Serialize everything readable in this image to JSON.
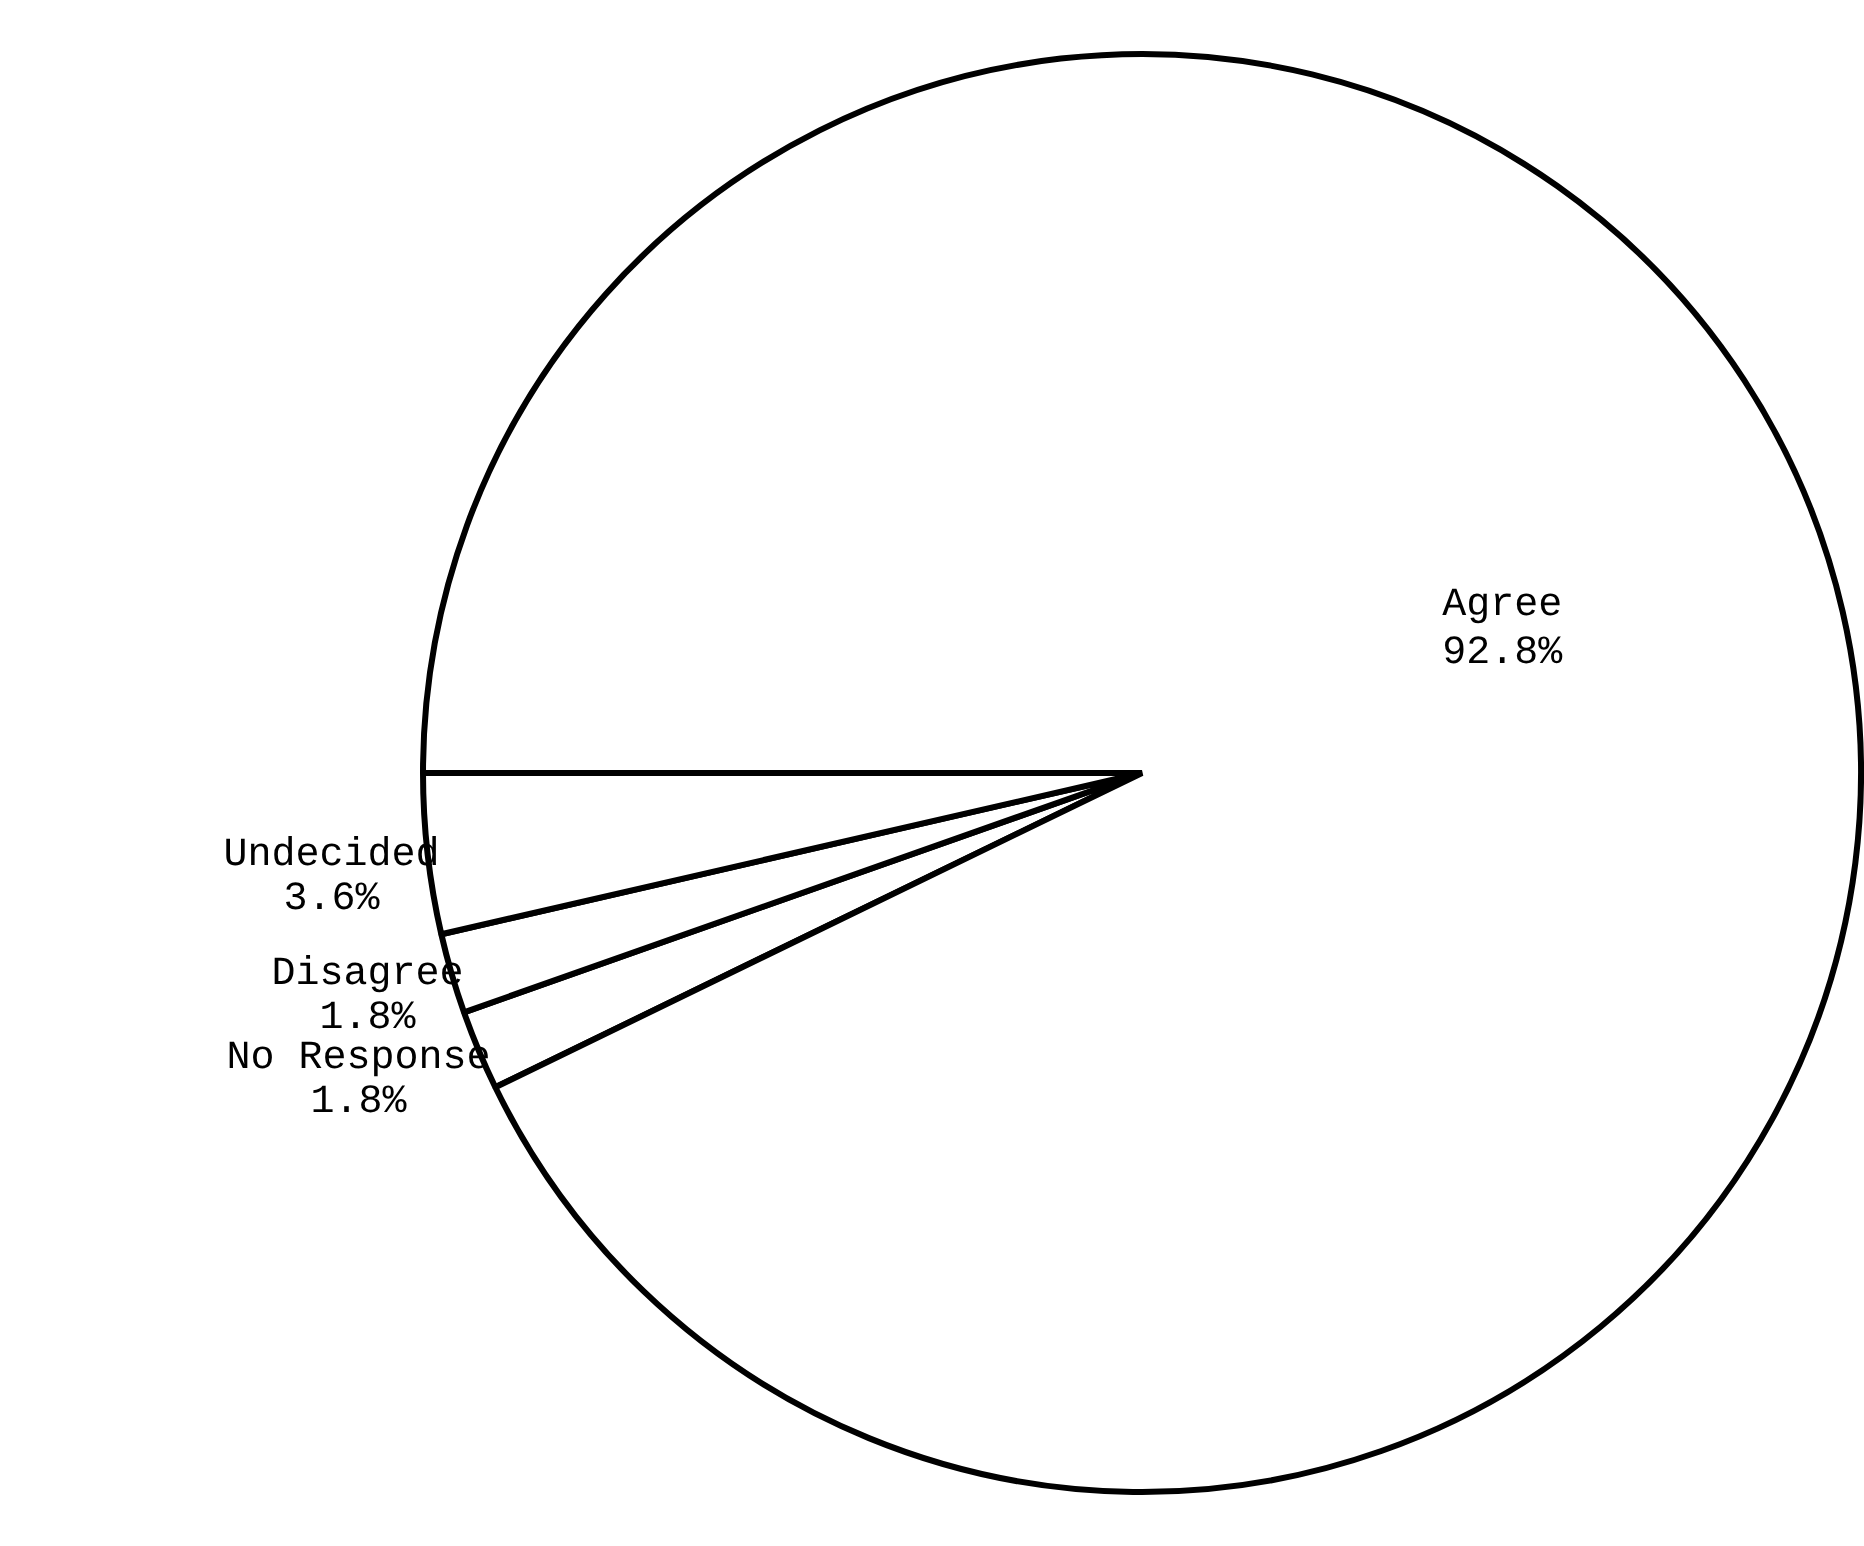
{
  "chart_data": {
    "type": "pie",
    "categories": [
      "No Response",
      "Disagree",
      "Undecided",
      "Agree"
    ],
    "values": [
      1.8,
      1.8,
      3.6,
      92.8
    ],
    "value_labels": [
      "1.8%",
      "1.8%",
      "3.6%",
      "92.8%"
    ],
    "colors": [
      "#ffffff",
      "#ffffff",
      "#ffffff",
      "#ffffff"
    ],
    "legend": false
  }
}
